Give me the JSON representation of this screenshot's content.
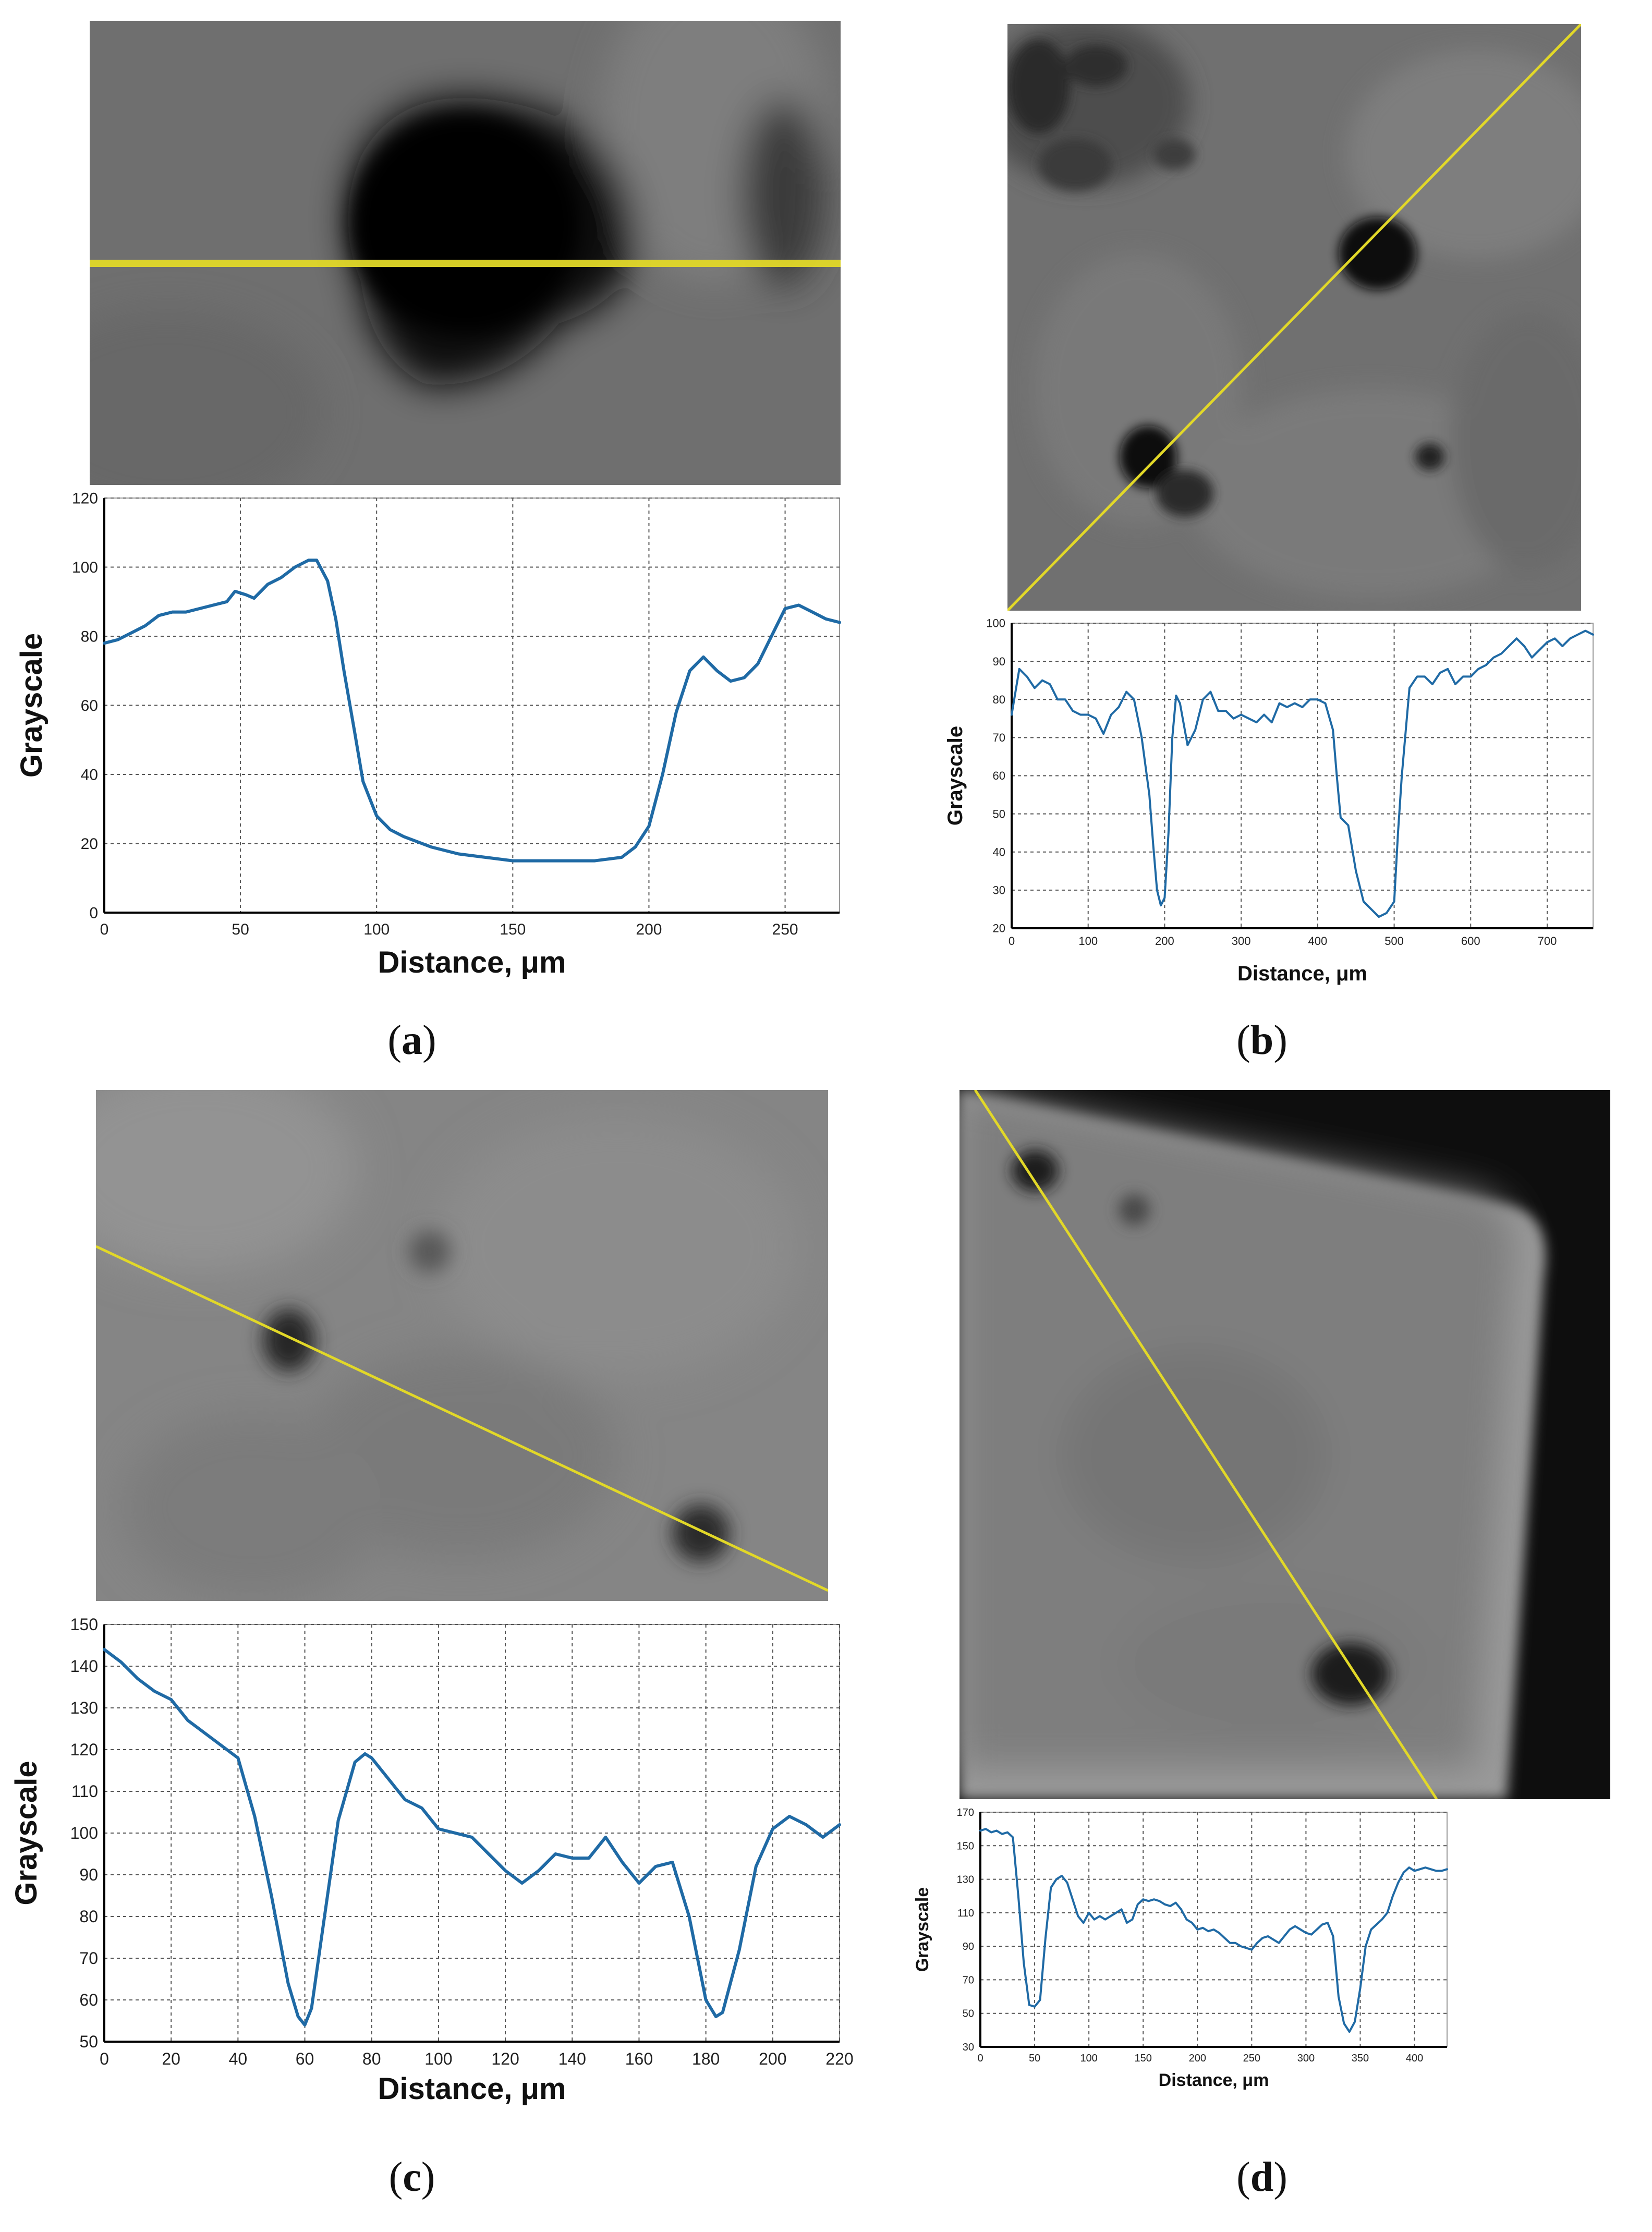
{
  "colors": {
    "line": "#1f6aa5",
    "scanline": "#e2d828",
    "grid": "#555555"
  },
  "panels": [
    {
      "id": "a",
      "caption": "a"
    },
    {
      "id": "b",
      "caption": "b"
    },
    {
      "id": "c",
      "caption": "c"
    },
    {
      "id": "d",
      "caption": "d"
    }
  ],
  "chart_data": [
    {
      "panel": "a",
      "type": "line",
      "xlabel": "Distance, μm",
      "ylabel": "Grayscale",
      "xlim": [
        0,
        270
      ],
      "ylim": [
        0,
        120
      ],
      "xticks": [
        0,
        50,
        100,
        150,
        200,
        250
      ],
      "yticks": [
        0,
        20,
        40,
        60,
        80,
        100,
        120
      ],
      "grid": true,
      "x": [
        0,
        5,
        10,
        15,
        20,
        25,
        30,
        35,
        40,
        45,
        48,
        52,
        55,
        60,
        65,
        70,
        75,
        78,
        82,
        85,
        88,
        92,
        95,
        100,
        105,
        110,
        120,
        130,
        140,
        150,
        160,
        170,
        180,
        190,
        195,
        200,
        205,
        210,
        215,
        220,
        225,
        230,
        235,
        240,
        245,
        250,
        255,
        260,
        265,
        270
      ],
      "y": [
        78,
        79,
        81,
        83,
        86,
        87,
        87,
        88,
        89,
        90,
        93,
        92,
        91,
        95,
        97,
        100,
        102,
        102,
        96,
        85,
        70,
        52,
        38,
        28,
        24,
        22,
        19,
        17,
        16,
        15,
        15,
        15,
        15,
        16,
        19,
        25,
        40,
        58,
        70,
        74,
        70,
        67,
        68,
        72,
        80,
        88,
        89,
        87,
        85,
        84
      ]
    },
    {
      "panel": "b",
      "type": "line",
      "xlabel": "Distance, μm",
      "ylabel": "Grayscale",
      "xlim": [
        0,
        760
      ],
      "ylim": [
        20,
        100
      ],
      "xticks": [
        0,
        100,
        200,
        300,
        400,
        500,
        600,
        700
      ],
      "yticks": [
        20,
        30,
        40,
        50,
        60,
        70,
        80,
        90,
        100
      ],
      "grid": true,
      "x": [
        0,
        10,
        20,
        30,
        40,
        50,
        60,
        70,
        80,
        90,
        100,
        110,
        120,
        130,
        140,
        150,
        160,
        170,
        180,
        185,
        190,
        195,
        200,
        205,
        210,
        215,
        220,
        230,
        240,
        250,
        260,
        270,
        280,
        290,
        300,
        310,
        320,
        330,
        340,
        350,
        360,
        370,
        380,
        390,
        400,
        410,
        420,
        425,
        430,
        440,
        450,
        460,
        470,
        480,
        490,
        500,
        505,
        510,
        520,
        530,
        540,
        550,
        560,
        570,
        580,
        590,
        600,
        610,
        620,
        630,
        640,
        650,
        660,
        670,
        680,
        690,
        700,
        710,
        720,
        730,
        740,
        750,
        760
      ],
      "y": [
        76,
        88,
        86,
        83,
        85,
        84,
        80,
        80,
        77,
        76,
        76,
        75,
        71,
        76,
        78,
        82,
        80,
        70,
        55,
        42,
        30,
        26,
        28,
        45,
        70,
        81,
        79,
        68,
        72,
        80,
        82,
        77,
        77,
        75,
        76,
        75,
        74,
        76,
        74,
        79,
        78,
        79,
        78,
        80,
        80,
        79,
        72,
        60,
        49,
        47,
        35,
        27,
        25,
        23,
        24,
        27,
        45,
        60,
        83,
        86,
        86,
        84,
        87,
        88,
        84,
        86,
        86,
        88,
        89,
        91,
        92,
        94,
        96,
        94,
        91,
        93,
        95,
        96,
        94,
        96,
        97,
        98,
        97
      ]
    },
    {
      "panel": "c",
      "type": "line",
      "xlabel": "Distance, μm",
      "ylabel": "Grayscale",
      "xlim": [
        0,
        220
      ],
      "ylim": [
        50,
        150
      ],
      "xticks": [
        0,
        20,
        40,
        60,
        80,
        100,
        120,
        140,
        160,
        180,
        200,
        220
      ],
      "yticks": [
        50,
        60,
        70,
        80,
        90,
        100,
        110,
        120,
        130,
        140,
        150
      ],
      "grid": true,
      "x": [
        0,
        5,
        10,
        15,
        20,
        25,
        30,
        35,
        40,
        45,
        50,
        55,
        58,
        60,
        62,
        65,
        70,
        75,
        78,
        80,
        85,
        90,
        95,
        100,
        105,
        110,
        115,
        120,
        125,
        130,
        135,
        140,
        145,
        150,
        155,
        160,
        165,
        170,
        175,
        180,
        183,
        185,
        190,
        195,
        200,
        205,
        210,
        215,
        220
      ],
      "y": [
        144,
        141,
        137,
        134,
        132,
        127,
        124,
        121,
        118,
        104,
        85,
        64,
        56,
        54,
        58,
        75,
        103,
        117,
        119,
        118,
        113,
        108,
        106,
        101,
        100,
        99,
        95,
        91,
        88,
        91,
        95,
        94,
        94,
        99,
        93,
        88,
        92,
        93,
        80,
        60,
        56,
        57,
        72,
        92,
        101,
        104,
        102,
        99,
        102
      ]
    },
    {
      "panel": "d",
      "type": "line",
      "xlabel": "Distance, μm",
      "ylabel": "Grayscale",
      "xlim": [
        0,
        430
      ],
      "ylim": [
        30,
        170
      ],
      "xticks": [
        0,
        50,
        100,
        150,
        200,
        250,
        300,
        350,
        400
      ],
      "yticks": [
        30,
        50,
        70,
        90,
        110,
        130,
        150,
        170
      ],
      "grid": true,
      "x": [
        0,
        5,
        10,
        15,
        20,
        25,
        30,
        35,
        40,
        45,
        50,
        55,
        60,
        65,
        70,
        75,
        80,
        85,
        90,
        95,
        100,
        105,
        110,
        115,
        120,
        125,
        130,
        135,
        140,
        145,
        150,
        155,
        160,
        165,
        170,
        175,
        180,
        185,
        190,
        195,
        200,
        205,
        210,
        215,
        220,
        225,
        230,
        235,
        240,
        245,
        250,
        255,
        260,
        265,
        270,
        275,
        280,
        285,
        290,
        295,
        300,
        305,
        310,
        315,
        320,
        325,
        330,
        335,
        340,
        345,
        350,
        355,
        360,
        365,
        370,
        375,
        380,
        385,
        390,
        395,
        400,
        405,
        410,
        415,
        420,
        425,
        430
      ],
      "y": [
        159,
        160,
        158,
        159,
        157,
        158,
        155,
        120,
        80,
        55,
        54,
        58,
        95,
        125,
        130,
        132,
        128,
        118,
        108,
        104,
        110,
        106,
        108,
        106,
        108,
        110,
        112,
        104,
        106,
        115,
        118,
        117,
        118,
        117,
        115,
        114,
        116,
        112,
        106,
        104,
        100,
        101,
        99,
        100,
        98,
        95,
        92,
        92,
        90,
        89,
        88,
        92,
        95,
        96,
        94,
        92,
        96,
        100,
        102,
        100,
        98,
        97,
        100,
        103,
        104,
        96,
        60,
        44,
        39,
        45,
        65,
        90,
        100,
        103,
        106,
        110,
        120,
        128,
        134,
        137,
        135,
        136,
        137,
        136,
        135,
        135,
        136
      ]
    }
  ]
}
